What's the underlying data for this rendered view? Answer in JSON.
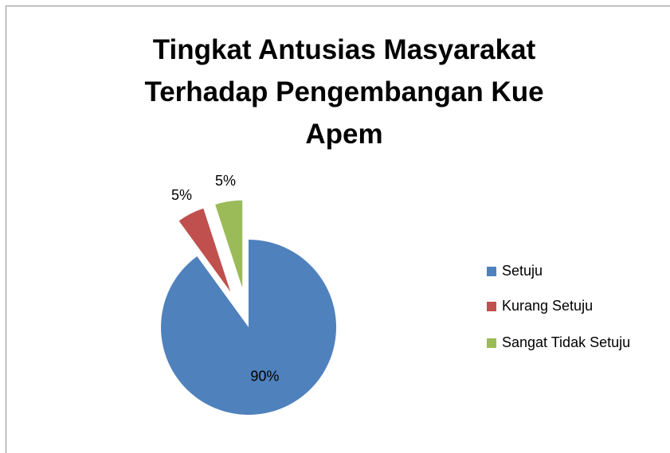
{
  "chart_data": {
    "type": "pie",
    "title": "Tingkat Antusias Masyarakat Terhadap Pengembangan Kue Apem",
    "categories": [
      "Setuju",
      "Kurang Setuju",
      "Sangat Tidak Setuju"
    ],
    "values": [
      90,
      5,
      5
    ],
    "value_labels": [
      "90%",
      "5%",
      "5%"
    ],
    "colors": [
      "#4f81bd",
      "#c0504d",
      "#9bbb59"
    ],
    "legend": "right"
  }
}
